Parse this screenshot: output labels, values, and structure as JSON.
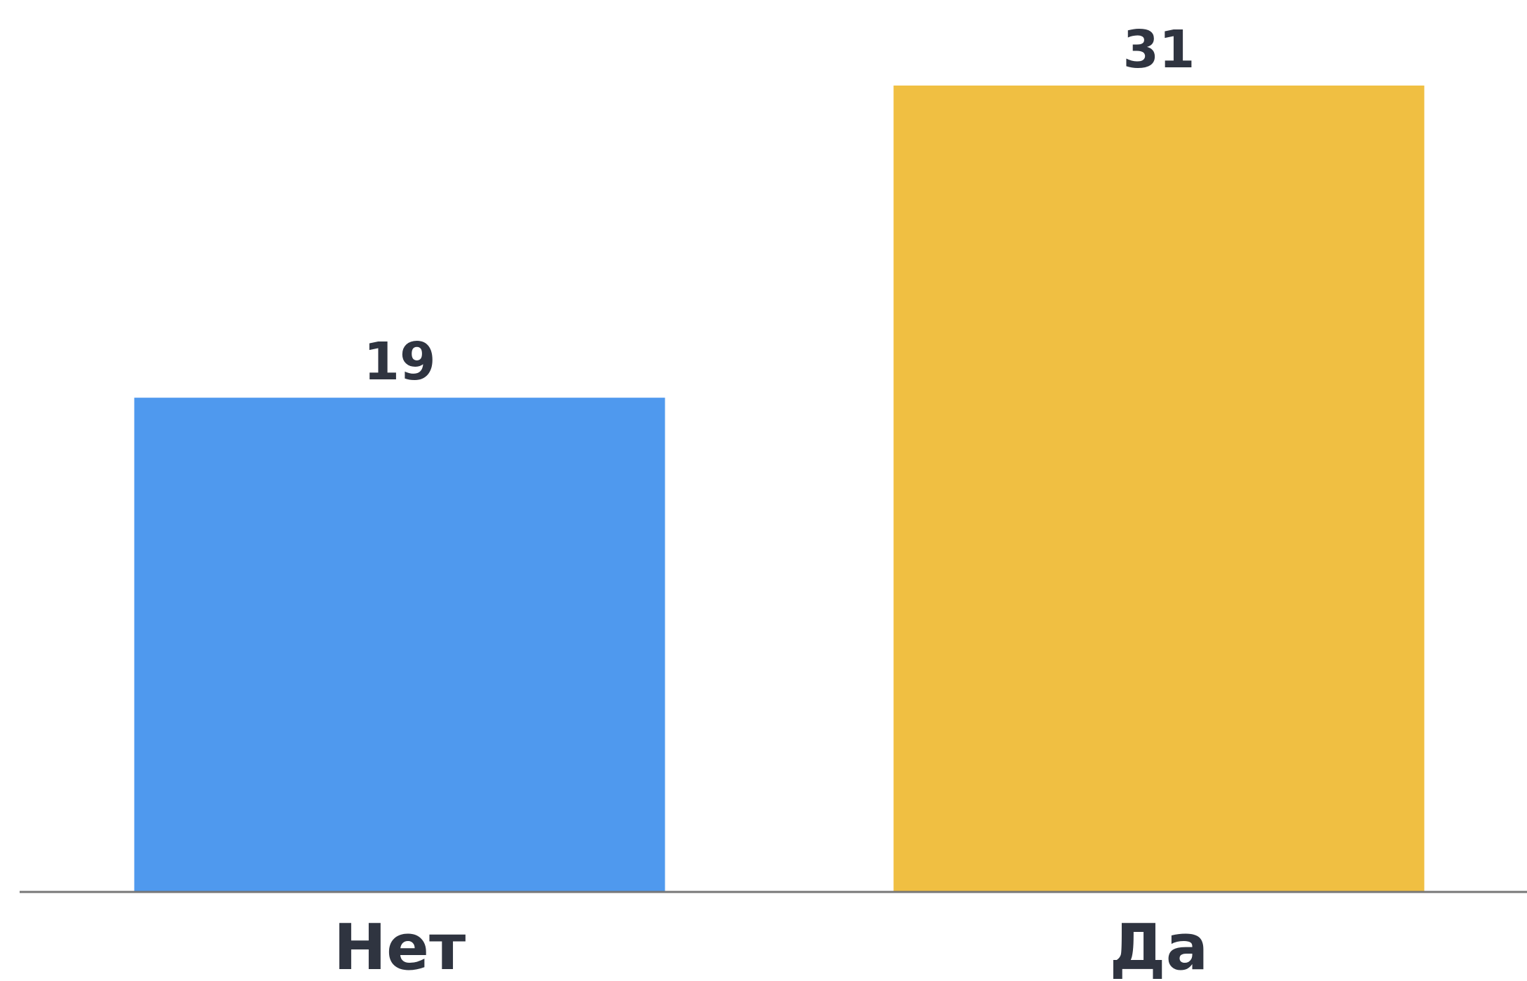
{
  "chart_data": {
    "type": "bar",
    "categories": [
      "Нет",
      "Да"
    ],
    "values": [
      19,
      31
    ],
    "colors": [
      "#4f99ee",
      "#f0bf42"
    ],
    "axis_color": "#777777",
    "text_color": "#2f3440",
    "title": "",
    "xlabel": "",
    "ylabel": "",
    "ylim": [
      0,
      31
    ],
    "grid": false,
    "legend": "none"
  }
}
